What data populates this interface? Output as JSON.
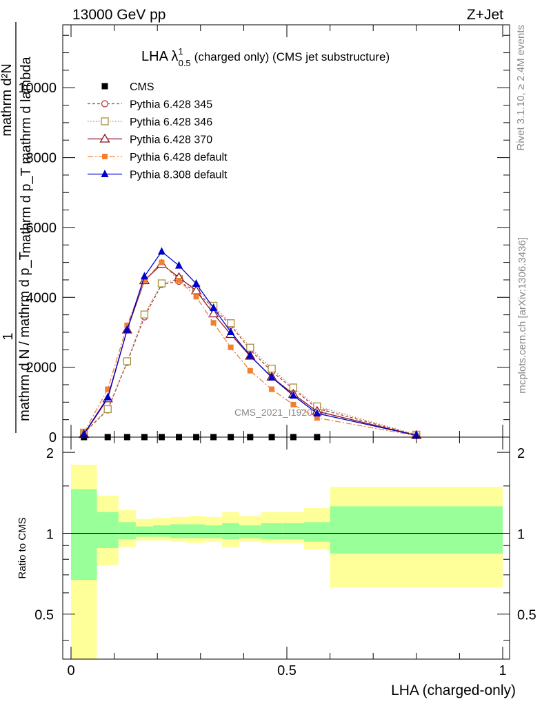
{
  "header": {
    "left": "13000 GeV pp",
    "right": "Z+Jet"
  },
  "side_text": {
    "rivet": "Rivet 3.1.10, ≥ 2.4M events",
    "mcplots": "mcplots.cern.ch [arXiv:1306.3436]"
  },
  "colors": {
    "cms": "#000000",
    "p345": "#b8343a",
    "p346": "#a98c3c",
    "p370": "#8c1020",
    "pdef": "#f08030",
    "p8": "#0000cc",
    "band_outer": "#ffff99",
    "band_inner": "#99ff99"
  },
  "chart_data": [
    {
      "type": "line",
      "title": "LHA λ",
      "title_sup": "1",
      "title_sub": "0.5",
      "title_suffix": "(charged only) (CMS jet substructure)",
      "ylabel_frac_num": "mathrm d²N",
      "ylabel_frac_den": "mathrm d p_T mathrm d lambda",
      "ylabel_top": "1",
      "ylabel_bottom": "mathrm d N / mathrm d p_T",
      "watermark": "CMS_2021_I1920187",
      "xlim": [
        0,
        1
      ],
      "ylim": [
        0,
        11800
      ],
      "yticks": [
        0,
        2000,
        4000,
        6000,
        8000,
        10000
      ],
      "ytick_labels": [
        "0",
        "2000",
        "4000",
        "6000",
        "8000",
        "10000"
      ],
      "legend_position": "top-left",
      "x": [
        0.03,
        0.085,
        0.13,
        0.17,
        0.21,
        0.25,
        0.29,
        0.33,
        0.37,
        0.415,
        0.465,
        0.515,
        0.57,
        0.8
      ],
      "series": [
        {
          "name": "CMS",
          "marker": "square",
          "values": [
            0,
            0,
            0,
            0,
            0,
            0,
            0,
            0,
            0,
            0,
            0,
            0,
            0,
            0
          ]
        },
        {
          "name": "Pythia 6.428 345",
          "marker": "circle-open",
          "dash": "4,3",
          "color_key": "p345",
          "values": [
            120,
            780,
            2140,
            3440,
            4370,
            4460,
            4160,
            3700,
            3200,
            2500,
            1880,
            1380,
            820,
            60
          ]
        },
        {
          "name": "Pythia 6.428 346",
          "marker": "square-open",
          "dash": "1.5,2.5",
          "color_key": "p346",
          "values": [
            130,
            800,
            2170,
            3510,
            4400,
            4520,
            4250,
            3760,
            3260,
            2560,
            1960,
            1420,
            880,
            70
          ]
        },
        {
          "name": "Pythia 6.428 370",
          "marker": "triangle-open",
          "dash": "",
          "color_key": "p370",
          "values": [
            80,
            1100,
            3070,
            4480,
            4950,
            4570,
            4190,
            3530,
            2940,
            2320,
            1720,
            1230,
            740,
            50
          ]
        },
        {
          "name": "Pythia 6.428 default",
          "marker": "square-filled",
          "dash": "8,3,2,3",
          "color_key": "pdef",
          "values": [
            130,
            1370,
            3200,
            4490,
            5000,
            4480,
            4020,
            3270,
            2570,
            1900,
            1370,
            930,
            550,
            40
          ]
        },
        {
          "name": "Pythia 8.308 default",
          "marker": "triangle-filled",
          "dash": "",
          "color_key": "p8",
          "values": [
            90,
            1140,
            3070,
            4600,
            5310,
            4910,
            4390,
            3700,
            3010,
            2330,
            1710,
            1190,
            680,
            50
          ]
        }
      ]
    },
    {
      "type": "area",
      "ylabel": "Ratio to CMS",
      "xlabel": "LHA (charged-only)",
      "xlim": [
        0,
        1
      ],
      "ylim": [
        0.34,
        2.28
      ],
      "yticks": [
        0.5,
        1,
        2
      ],
      "ytick_labels": [
        "0.5",
        "1",
        "2"
      ],
      "xticks": [
        0,
        0.5,
        1
      ],
      "xtick_labels": [
        "0",
        "0.5",
        "1"
      ],
      "bin_edges": [
        0.0,
        0.06,
        0.11,
        0.15,
        0.19,
        0.23,
        0.27,
        0.31,
        0.35,
        0.39,
        0.44,
        0.49,
        0.54,
        0.6,
        1.0
      ],
      "outer_low": [
        0.34,
        0.76,
        0.89,
        0.94,
        0.94,
        0.93,
        0.92,
        0.93,
        0.89,
        0.93,
        0.92,
        0.92,
        0.87,
        0.63
      ],
      "outer_high": [
        1.8,
        1.38,
        1.22,
        1.13,
        1.14,
        1.15,
        1.16,
        1.15,
        1.2,
        1.16,
        1.2,
        1.2,
        1.24,
        1.49
      ],
      "inner_low": [
        0.67,
        0.88,
        0.95,
        0.97,
        0.97,
        0.96,
        0.96,
        0.96,
        0.95,
        0.96,
        0.95,
        0.95,
        0.93,
        0.84
      ],
      "inner_high": [
        1.46,
        1.2,
        1.1,
        1.06,
        1.07,
        1.08,
        1.08,
        1.07,
        1.09,
        1.07,
        1.09,
        1.09,
        1.1,
        1.26
      ]
    }
  ]
}
